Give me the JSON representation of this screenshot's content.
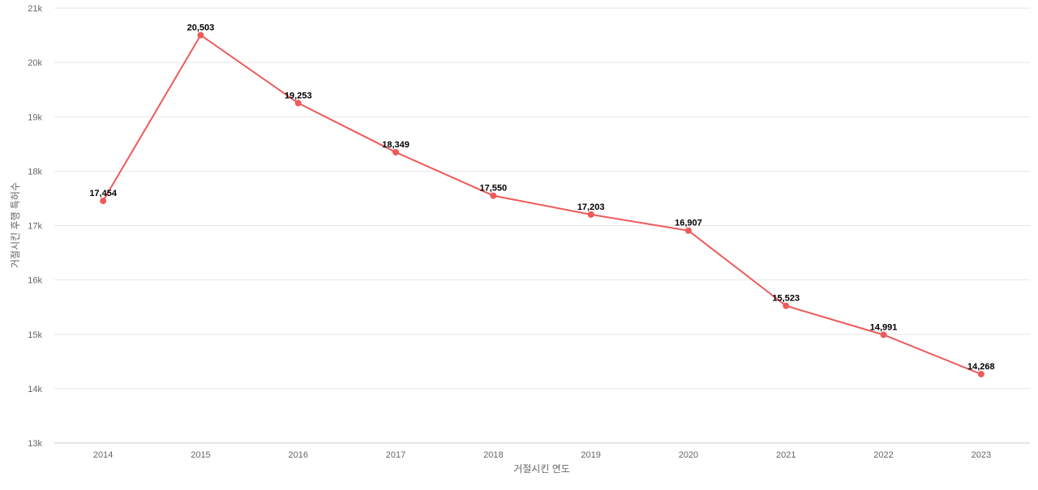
{
  "chart_data": {
    "type": "line",
    "title": "",
    "xlabel": "거절시킨 연도",
    "ylabel": "거절시킨 후행 특허수",
    "categories": [
      "2014",
      "2015",
      "2016",
      "2017",
      "2018",
      "2019",
      "2020",
      "2021",
      "2022",
      "2023"
    ],
    "series": [
      {
        "values": [
          17454,
          20503,
          19253,
          18349,
          17550,
          17203,
          16907,
          15523,
          14991,
          14268
        ],
        "value_labels": [
          "17,454",
          "20,503",
          "19,253",
          "18,349",
          "17,550",
          "17,203",
          "16,907",
          "15,523",
          "14,991",
          "14,268"
        ],
        "color": "#ee5a5a"
      }
    ],
    "ylim": [
      13000,
      21000
    ],
    "yticks": [
      13000,
      14000,
      15000,
      16000,
      17000,
      18000,
      19000,
      20000,
      21000
    ],
    "ytick_labels": [
      "13k",
      "14k",
      "15k",
      "16k",
      "17k",
      "18k",
      "19k",
      "20k",
      "21k"
    ],
    "grid": true,
    "legend": "none"
  }
}
